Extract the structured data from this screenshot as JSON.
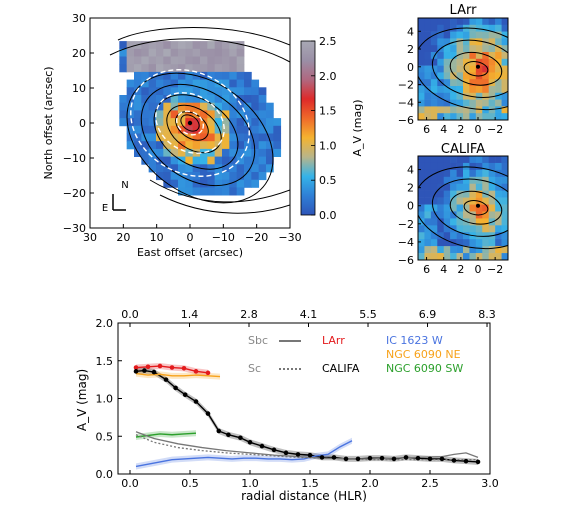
{
  "chart_data": [
    {
      "type": "heatmap",
      "panel": "main-map",
      "xlabel": "East offset (arcsec)",
      "ylabel": "North offset (arcsec)",
      "xlim": [
        30,
        -30
      ],
      "ylim": [
        -30,
        30
      ],
      "xticks": [
        "30",
        "20",
        "10",
        "0",
        "−10",
        "−20",
        "−30"
      ],
      "yticks": [
        "30",
        "20",
        "10",
        "0",
        "−10",
        "−20",
        "−30"
      ],
      "compass": {
        "north": "N",
        "east": "E"
      },
      "colorbar": {
        "label": "A_V (mag)",
        "ticks": [
          "2.5",
          "2.0",
          "1.5",
          "1.0",
          "0.5",
          "0.0"
        ],
        "range": [
          0,
          2.5
        ],
        "colors": [
          "#2e55b8",
          "#2f7fd6",
          "#35b3e8",
          "#b8b58a",
          "#f4b330",
          "#ef6a2a",
          "#de2a2a",
          "#b06880",
          "#9a8fa6",
          "#a8a8b4"
        ]
      },
      "features": {
        "dashed_ellipses": 3,
        "contour_color": "#000000",
        "blank_color": "#ffffff"
      }
    },
    {
      "type": "heatmap",
      "panel": "inset-larr",
      "title": "LArr",
      "xticks": [
        "6",
        "4",
        "2",
        "0",
        "−2"
      ],
      "yticks": [
        "4",
        "2",
        "0",
        "−2",
        "−4",
        "−6"
      ],
      "xlim": [
        7,
        -3.5
      ],
      "ylim": [
        -6,
        5.5
      ]
    },
    {
      "type": "heatmap",
      "panel": "inset-califa",
      "title": "CALIFA",
      "xticks": [
        "6",
        "4",
        "2",
        "0",
        "−2"
      ],
      "yticks": [
        "4",
        "2",
        "0",
        "−2",
        "−4",
        "−6"
      ],
      "xlim": [
        7,
        -3.5
      ],
      "ylim": [
        -6,
        5.5
      ]
    },
    {
      "type": "line",
      "panel": "profile",
      "xlabel": "radial distance (HLR)",
      "ylabel": "A_V (mag)",
      "xlim": [
        -0.1,
        3.0
      ],
      "ylim": [
        0,
        2.0
      ],
      "xticks": [
        "0.0",
        "0.5",
        "1.0",
        "1.5",
        "2.0",
        "2.5",
        "3.0"
      ],
      "yticks": [
        "0.0",
        "0.5",
        "1.0",
        "1.5",
        "2.0"
      ],
      "top_xticks": [
        "0.0",
        "1.4",
        "2.8",
        "4.1",
        "5.5",
        "6.9",
        "8.3"
      ],
      "legend": {
        "models": [
          {
            "label": "Sbc",
            "style": "solid"
          },
          {
            "label": "Sc",
            "style": "dotted"
          }
        ],
        "series_labels": [
          {
            "label": "LArr",
            "color": "#e31a1c"
          },
          {
            "label": "CALIFA",
            "color": "#000000"
          },
          {
            "label": "IC 1623 W",
            "color": "#4a74e0"
          },
          {
            "label": "NGC 6090 NE",
            "color": "#f7a21b"
          },
          {
            "label": "NGC 6090 SW",
            "color": "#2ca02c"
          }
        ]
      },
      "series": [
        {
          "name": "LArr",
          "color": "#e31a1c",
          "markers": true,
          "x": [
            0.05,
            0.15,
            0.25,
            0.35,
            0.45,
            0.55,
            0.65
          ],
          "y": [
            1.41,
            1.42,
            1.43,
            1.41,
            1.4,
            1.36,
            1.34
          ]
        },
        {
          "name": "CALIFA",
          "color": "#000000",
          "markers": true,
          "x": [
            0.05,
            0.12,
            0.2,
            0.3,
            0.38,
            0.46,
            0.55,
            0.65,
            0.74,
            0.82,
            0.92,
            1.0,
            1.1,
            1.2,
            1.3,
            1.4,
            1.5,
            1.6,
            1.7,
            1.8,
            1.9,
            2.0,
            2.1,
            2.2,
            2.3,
            2.4,
            2.5,
            2.6,
            2.7,
            2.8,
            2.9
          ],
          "y": [
            1.36,
            1.37,
            1.35,
            1.25,
            1.14,
            1.05,
            0.96,
            0.8,
            0.57,
            0.52,
            0.48,
            0.42,
            0.37,
            0.32,
            0.28,
            0.26,
            0.25,
            0.22,
            0.22,
            0.2,
            0.2,
            0.21,
            0.21,
            0.2,
            0.22,
            0.21,
            0.2,
            0.2,
            0.18,
            0.17,
            0.16
          ]
        },
        {
          "name": "NGC 6090 NE",
          "color": "#f7a21b",
          "markers": false,
          "x": [
            0.05,
            0.15,
            0.25,
            0.35,
            0.45,
            0.55,
            0.65,
            0.75
          ],
          "y": [
            1.33,
            1.31,
            1.32,
            1.3,
            1.3,
            1.31,
            1.3,
            1.29
          ]
        },
        {
          "name": "NGC 6090 SW",
          "color": "#2ca02c",
          "markers": false,
          "x": [
            0.05,
            0.15,
            0.25,
            0.35,
            0.45,
            0.55
          ],
          "y": [
            0.49,
            0.51,
            0.53,
            0.52,
            0.53,
            0.54
          ]
        },
        {
          "name": "IC 1623 W",
          "color": "#4a74e0",
          "markers": false,
          "x": [
            0.05,
            0.15,
            0.25,
            0.35,
            0.45,
            0.55,
            0.65,
            0.75,
            0.85,
            0.95,
            1.05,
            1.15,
            1.25,
            1.35,
            1.45,
            1.55,
            1.65,
            1.75,
            1.85
          ],
          "y": [
            0.1,
            0.13,
            0.16,
            0.19,
            0.2,
            0.21,
            0.22,
            0.21,
            0.2,
            0.21,
            0.21,
            0.2,
            0.2,
            0.19,
            0.2,
            0.24,
            0.26,
            0.36,
            0.44
          ]
        },
        {
          "name": "Sbc",
          "color": "#777777",
          "style": "solid",
          "markers": false,
          "x": [
            0.05,
            0.2,
            0.4,
            0.6,
            0.8,
            1.0,
            1.2,
            1.4,
            1.6,
            1.8,
            2.0,
            2.2,
            2.4,
            2.6,
            2.7,
            2.8,
            2.9
          ],
          "y": [
            0.56,
            0.47,
            0.4,
            0.35,
            0.31,
            0.28,
            0.25,
            0.23,
            0.21,
            0.2,
            0.2,
            0.21,
            0.22,
            0.23,
            0.26,
            0.28,
            0.22
          ]
        },
        {
          "name": "Sc",
          "color": "#777777",
          "style": "dotted",
          "markers": false,
          "x": [
            0.05,
            0.2,
            0.4,
            0.6,
            0.8,
            1.0,
            1.2,
            1.4,
            1.6,
            1.8,
            2.0,
            2.2,
            2.4,
            2.6,
            2.8,
            2.9
          ],
          "y": [
            0.52,
            0.42,
            0.35,
            0.31,
            0.28,
            0.26,
            0.24,
            0.22,
            0.21,
            0.2,
            0.19,
            0.19,
            0.19,
            0.19,
            0.19,
            0.19
          ]
        }
      ]
    }
  ]
}
